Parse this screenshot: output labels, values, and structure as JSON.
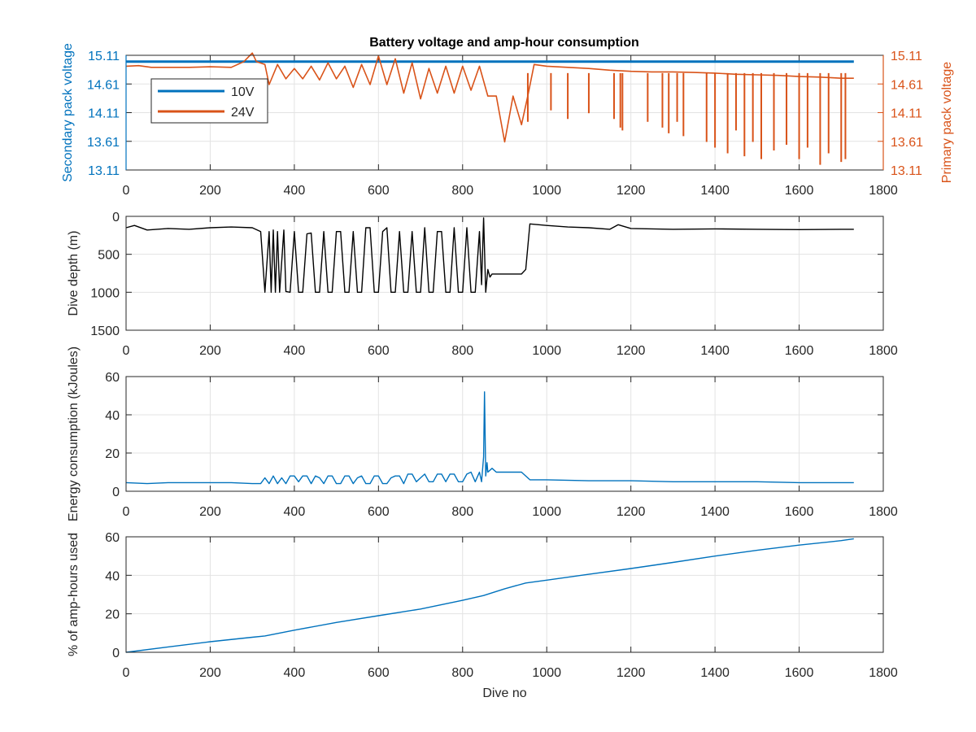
{
  "figure": {
    "title": "Battery voltage and amp-hour consumption",
    "background": "#ffffff"
  },
  "colors": {
    "blue": "#0072BD",
    "orange": "#D95319",
    "black": "#000000",
    "grid": "#e3e3e3",
    "axis": "#262626"
  },
  "chart_data": [
    {
      "id": "voltage",
      "type": "line",
      "title": "Battery voltage and amp-hour consumption",
      "xlabel": "",
      "ylabel_left": "Secondary pack voltage",
      "ylabel_right": "Primary pack voltage",
      "xlim": [
        0,
        1800
      ],
      "ylim": [
        13.11,
        15.11
      ],
      "xticks": [
        "0",
        "200",
        "400",
        "600",
        "800",
        "1000",
        "1200",
        "1400",
        "1600",
        "1800"
      ],
      "yticks_left": [
        "13.11",
        "13.61",
        "14.11",
        "14.61",
        "15.11"
      ],
      "yticks_right": [
        "13.11",
        "13.61",
        "14.11",
        "14.61",
        "15.11"
      ],
      "grid": true,
      "legend_position": "top-left",
      "series": [
        {
          "name": "10V",
          "axis": "left",
          "color": "#0072BD",
          "width": 3,
          "x": [
            0,
            1730
          ],
          "y": [
            15.0,
            15.0
          ]
        },
        {
          "name": "24V",
          "axis": "right",
          "color": "#D95319",
          "width": 1.6,
          "x": [
            0,
            30,
            60,
            100,
            150,
            200,
            250,
            280,
            300,
            310,
            330,
            340,
            360,
            380,
            400,
            420,
            440,
            460,
            480,
            500,
            520,
            540,
            560,
            580,
            600,
            620,
            640,
            660,
            680,
            700,
            720,
            740,
            760,
            780,
            800,
            820,
            840,
            860,
            880,
            900,
            920,
            940,
            955,
            970,
            1000,
            1050,
            1100,
            1150,
            1200,
            1250,
            1300,
            1350,
            1400,
            1450,
            1500,
            1550,
            1600,
            1650,
            1700,
            1730
          ],
          "y": [
            14.92,
            14.93,
            14.9,
            14.9,
            14.9,
            14.91,
            14.9,
            15.0,
            15.15,
            15.0,
            14.95,
            14.6,
            14.95,
            14.7,
            14.88,
            14.7,
            14.92,
            14.68,
            14.98,
            14.7,
            14.92,
            14.55,
            14.95,
            14.6,
            15.1,
            14.6,
            15.05,
            14.45,
            14.98,
            14.35,
            14.88,
            14.45,
            14.92,
            14.45,
            14.92,
            14.5,
            14.92,
            14.4,
            14.4,
            13.6,
            14.4,
            13.9,
            14.4,
            14.95,
            14.92,
            14.9,
            14.88,
            14.85,
            14.83,
            14.82,
            14.82,
            14.81,
            14.8,
            14.78,
            14.77,
            14.76,
            14.74,
            14.73,
            14.71,
            14.71
          ],
          "dropouts": [
            {
              "x": 955,
              "y": 13.95
            },
            {
              "x": 1010,
              "y": 14.15
            },
            {
              "x": 1050,
              "y": 14.0
            },
            {
              "x": 1100,
              "y": 14.1
            },
            {
              "x": 1160,
              "y": 14.0
            },
            {
              "x": 1175,
              "y": 13.85
            },
            {
              "x": 1180,
              "y": 13.8
            },
            {
              "x": 1240,
              "y": 13.95
            },
            {
              "x": 1275,
              "y": 13.85
            },
            {
              "x": 1290,
              "y": 13.75
            },
            {
              "x": 1310,
              "y": 13.95
            },
            {
              "x": 1325,
              "y": 13.7
            },
            {
              "x": 1380,
              "y": 13.6
            },
            {
              "x": 1400,
              "y": 13.5
            },
            {
              "x": 1430,
              "y": 13.4
            },
            {
              "x": 1450,
              "y": 13.8
            },
            {
              "x": 1470,
              "y": 13.35
            },
            {
              "x": 1490,
              "y": 13.6
            },
            {
              "x": 1510,
              "y": 13.3
            },
            {
              "x": 1540,
              "y": 13.45
            },
            {
              "x": 1570,
              "y": 13.55
            },
            {
              "x": 1600,
              "y": 13.3
            },
            {
              "x": 1620,
              "y": 13.5
            },
            {
              "x": 1650,
              "y": 13.2
            },
            {
              "x": 1670,
              "y": 13.4
            },
            {
              "x": 1700,
              "y": 13.25
            },
            {
              "x": 1710,
              "y": 13.3
            }
          ]
        }
      ]
    },
    {
      "id": "depth",
      "type": "line",
      "title": "",
      "xlabel": "",
      "ylabel": "Dive depth (m)",
      "xlim": [
        0,
        1800
      ],
      "ylim": [
        0,
        1500
      ],
      "yreversed": true,
      "xticks": [
        "0",
        "200",
        "400",
        "600",
        "800",
        "1000",
        "1200",
        "1400",
        "1600",
        "1800"
      ],
      "yticks": [
        "0",
        "500",
        "1000",
        "1500"
      ],
      "grid": true,
      "series": [
        {
          "color": "#000000",
          "x": [
            0,
            20,
            50,
            100,
            150,
            200,
            250,
            300,
            320,
            330,
            340,
            345,
            350,
            355,
            360,
            365,
            375,
            380,
            390,
            400,
            410,
            420,
            430,
            440,
            450,
            460,
            470,
            480,
            490,
            500,
            510,
            520,
            530,
            540,
            550,
            560,
            570,
            580,
            590,
            600,
            610,
            620,
            630,
            640,
            650,
            660,
            670,
            680,
            690,
            700,
            710,
            720,
            730,
            740,
            750,
            760,
            770,
            780,
            790,
            800,
            810,
            820,
            830,
            840,
            845,
            850,
            855,
            860,
            865,
            870,
            880,
            900,
            940,
            950,
            960,
            1000,
            1050,
            1100,
            1150,
            1170,
            1200,
            1300,
            1400,
            1500,
            1600,
            1700,
            1730
          ],
          "y": [
            150,
            120,
            180,
            160,
            170,
            150,
            140,
            150,
            200,
            1000,
            200,
            1000,
            180,
            1000,
            200,
            1000,
            180,
            990,
            1000,
            200,
            1000,
            1000,
            230,
            220,
            1000,
            1000,
            200,
            1000,
            1000,
            200,
            200,
            1000,
            1000,
            200,
            1000,
            1000,
            150,
            150,
            1000,
            1000,
            200,
            150,
            1000,
            1000,
            200,
            1000,
            1000,
            200,
            1000,
            1000,
            150,
            1000,
            1000,
            200,
            200,
            1000,
            1000,
            150,
            1000,
            1000,
            150,
            1000,
            1000,
            200,
            900,
            20,
            1000,
            700,
            800,
            760,
            760,
            760,
            760,
            700,
            100,
            120,
            140,
            150,
            170,
            110,
            160,
            170,
            165,
            170,
            175,
            170,
            170
          ]
        }
      ]
    },
    {
      "id": "energy",
      "type": "line",
      "title": "",
      "xlabel": "",
      "ylabel": "Energy consumption (kJoules)",
      "xlim": [
        0,
        1800
      ],
      "ylim": [
        0,
        60
      ],
      "xticks": [
        "0",
        "200",
        "400",
        "600",
        "800",
        "1000",
        "1200",
        "1400",
        "1600",
        "1800"
      ],
      "yticks": [
        "0",
        "20",
        "40",
        "60"
      ],
      "grid": true,
      "series": [
        {
          "color": "#0072BD",
          "x": [
            0,
            50,
            100,
            150,
            200,
            250,
            300,
            320,
            330,
            340,
            350,
            360,
            370,
            380,
            390,
            400,
            410,
            420,
            430,
            440,
            450,
            460,
            470,
            480,
            490,
            500,
            510,
            520,
            530,
            540,
            550,
            560,
            570,
            580,
            590,
            600,
            610,
            620,
            630,
            640,
            650,
            660,
            670,
            680,
            690,
            700,
            710,
            720,
            730,
            740,
            750,
            760,
            770,
            780,
            790,
            800,
            810,
            820,
            830,
            840,
            845,
            850,
            852,
            855,
            858,
            860,
            870,
            880,
            900,
            940,
            960,
            1000,
            1100,
            1200,
            1300,
            1400,
            1500,
            1600,
            1700,
            1730
          ],
          "y": [
            4.5,
            4,
            4.5,
            4.5,
            4.5,
            4.5,
            4,
            4,
            7,
            4,
            8,
            4,
            7,
            4,
            8,
            8,
            5,
            8,
            8,
            4,
            8,
            7,
            4,
            8,
            8,
            4,
            4,
            8,
            8,
            4,
            7,
            8,
            4,
            4,
            8,
            8,
            4,
            4,
            7,
            8,
            8,
            4,
            9,
            9,
            5,
            7,
            9,
            5,
            5,
            9,
            9,
            5,
            9,
            9,
            5,
            5,
            9,
            10,
            5,
            10,
            5,
            18,
            52,
            8,
            15,
            10,
            12,
            10,
            10,
            10,
            6,
            6,
            5.5,
            5.5,
            5,
            5,
            5,
            4.5,
            4.5,
            4.5
          ]
        }
      ]
    },
    {
      "id": "amphours",
      "type": "line",
      "title": "",
      "xlabel": "Dive no",
      "ylabel": "% of amp-hours used",
      "xlim": [
        0,
        1800
      ],
      "ylim": [
        0,
        60
      ],
      "xticks": [
        "0",
        "200",
        "400",
        "600",
        "800",
        "1000",
        "1200",
        "1400",
        "1600",
        "1800"
      ],
      "yticks": [
        "0",
        "20",
        "40",
        "60"
      ],
      "grid": true,
      "series": [
        {
          "color": "#0072BD",
          "x": [
            0,
            100,
            200,
            300,
            330,
            400,
            500,
            600,
            700,
            800,
            850,
            900,
            950,
            1000,
            1100,
            1200,
            1300,
            1400,
            1500,
            1600,
            1700,
            1730
          ],
          "y": [
            0,
            2.8,
            5.5,
            7.8,
            8.5,
            11.5,
            15.5,
            19,
            22.5,
            27,
            29.5,
            33,
            36,
            37.5,
            40.5,
            43.5,
            46.7,
            50,
            53,
            55.7,
            58,
            59
          ]
        }
      ]
    }
  ]
}
